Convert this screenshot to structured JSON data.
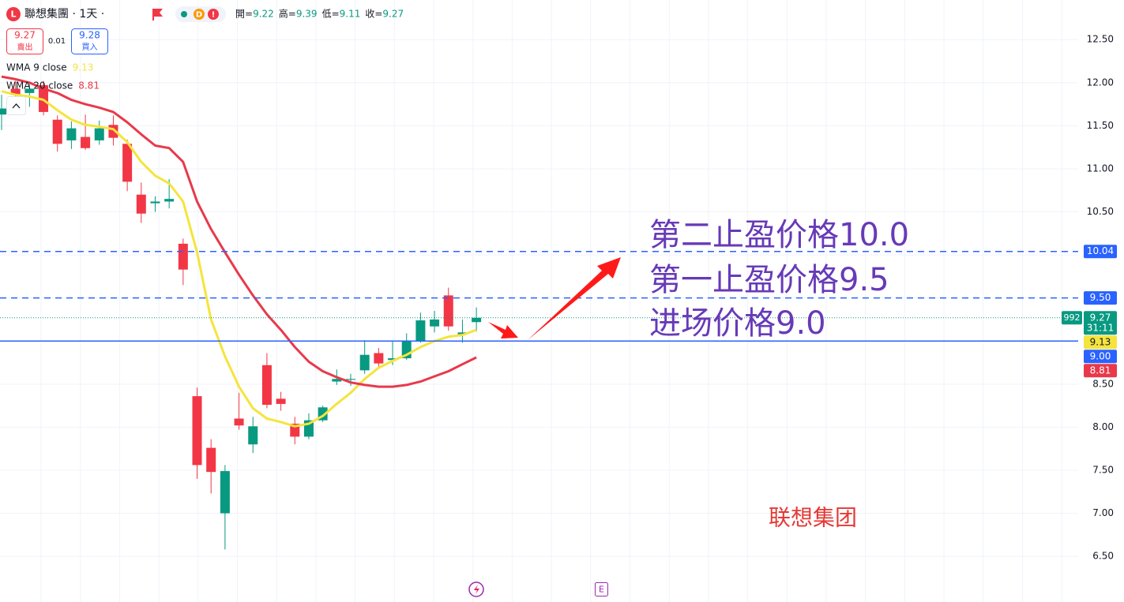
{
  "header": {
    "icon": "L",
    "title": "聯想集團 · 1天 ·",
    "badge": "D",
    "alert": "!",
    "ohlc_labels": [
      "開=",
      "高=",
      "低=",
      "收="
    ]
  },
  "quote": {
    "sell": 9.27,
    "sell_label": "賣出",
    "spread": 0.01,
    "buy": 9.28,
    "buy_label": "買入"
  },
  "chart_data": {
    "type": "candlestick",
    "categories": [
      null,
      null,
      null,
      null,
      null,
      null,
      null,
      null,
      null,
      null,
      null,
      null,
      null,
      null,
      null,
      null,
      null,
      null,
      null,
      null,
      null,
      null,
      null,
      null,
      null,
      null,
      null,
      null,
      null,
      null,
      null,
      null,
      null,
      null,
      null
    ],
    "open": [
      11.63,
      11.93,
      11.88,
      11.97,
      11.57,
      11.33,
      11.37,
      11.33,
      11.51,
      11.29,
      10.7,
      10.6,
      10.62,
      10.13,
      8.36,
      7.76,
      7.0,
      8.1,
      7.8,
      8.72,
      8.33,
      8.04,
      7.89,
      8.08,
      8.53,
      8.55,
      8.66,
      8.86,
      8.78,
      8.8,
      9.0,
      9.17,
      9.53,
      9.08,
      9.22
    ],
    "high": [
      11.86,
      12.02,
      12.0,
      12.02,
      11.62,
      11.55,
      11.63,
      11.56,
      11.62,
      11.34,
      10.84,
      10.68,
      10.88,
      10.19,
      8.46,
      7.86,
      7.56,
      8.4,
      8.12,
      8.86,
      8.41,
      8.12,
      8.16,
      8.25,
      8.67,
      8.62,
      9.01,
      8.92,
      9.0,
      9.09,
      9.33,
      9.35,
      9.62,
      9.25,
      9.39
    ],
    "low": [
      11.45,
      11.76,
      11.72,
      11.62,
      11.2,
      11.23,
      11.22,
      11.28,
      11.27,
      10.74,
      10.37,
      10.5,
      10.54,
      9.65,
      7.4,
      7.23,
      6.58,
      7.97,
      7.7,
      8.22,
      8.19,
      7.8,
      7.86,
      8.06,
      8.49,
      8.48,
      8.62,
      8.68,
      8.72,
      8.78,
      8.98,
      9.1,
      9.12,
      8.98,
      9.11
    ],
    "close": [
      11.7,
      11.86,
      11.93,
      11.66,
      11.29,
      11.47,
      11.24,
      11.47,
      11.36,
      10.85,
      10.48,
      10.62,
      10.65,
      9.83,
      7.56,
      7.48,
      7.49,
      8.02,
      8.01,
      8.26,
      8.27,
      7.89,
      8.08,
      8.23,
      8.56,
      8.56,
      8.84,
      8.74,
      8.8,
      9.0,
      9.24,
      9.25,
      9.17,
      9.1,
      9.27
    ],
    "up_color": "#089981",
    "down_color": "#f23645",
    "indicators": [
      {
        "name": "WMA 9 close",
        "color": "#f5e43d",
        "values": [
          11.9,
          11.86,
          11.84,
          11.8,
          11.68,
          11.57,
          11.51,
          11.49,
          11.46,
          11.31,
          11.08,
          10.92,
          10.83,
          10.62,
          10.03,
          9.25,
          8.82,
          8.47,
          8.22,
          8.1,
          8.06,
          8.01,
          8.04,
          8.13,
          8.27,
          8.4,
          8.56,
          8.69,
          8.77,
          8.84,
          8.93,
          9.0,
          9.05,
          9.07,
          9.13
        ]
      },
      {
        "name": "WMA 20 close",
        "color": "#e8394b",
        "values": [
          12.07,
          12.04,
          12.0,
          11.93,
          11.88,
          11.8,
          11.75,
          11.71,
          11.66,
          11.54,
          11.4,
          11.27,
          11.24,
          11.08,
          10.62,
          10.3,
          10.03,
          9.77,
          9.53,
          9.31,
          9.13,
          8.93,
          8.76,
          8.65,
          8.58,
          8.52,
          8.49,
          8.47,
          8.47,
          8.49,
          8.53,
          8.59,
          8.65,
          8.73,
          8.81
        ]
      }
    ],
    "ylim": [
      5.97,
      12.96
    ],
    "yticks": [
      {
        "value": 6.5,
        "label": "6.50"
      },
      {
        "value": 7,
        "label": "7.00"
      },
      {
        "value": 7.5,
        "label": "7.50"
      },
      {
        "value": 8,
        "label": "8.00"
      },
      {
        "value": 8.5,
        "label": "8.50"
      },
      {
        "value": 9,
        "label": "9.00"
      },
      {
        "value": 9.5,
        "label": "9.50"
      },
      {
        "value": 10,
        "label": "10.00"
      },
      {
        "value": 10.5,
        "label": "10.50"
      },
      {
        "value": 11,
        "label": "11.00"
      },
      {
        "value": 11.5,
        "label": "11.50"
      },
      {
        "value": 12,
        "label": "12.00"
      },
      {
        "value": 12.5,
        "label": "12.50"
      }
    ],
    "grid": true,
    "levels": [
      {
        "price": 10.04,
        "style": "dashed",
        "color": "#2962ff"
      },
      {
        "price": {
          "value": 9.5,
          "label": "9.50"
        },
        "style": "dashed",
        "color": "#2962ff"
      },
      {
        "price": {
          "value": 9,
          "label": "9.00"
        },
        "style": "solid",
        "color": "#2962ff"
      }
    ],
    "volume_tag": 992,
    "countdown": "31:11",
    "annotations": [
      {
        "text": "第二止盈价格10.0",
        "color": "#673ab7"
      },
      {
        "text": "第一止盈价格9.5",
        "color": "#673ab7"
      },
      {
        "text": "进场价格9.0",
        "color": "#673ab7"
      },
      {
        "text": "联想集团",
        "color": "#e53935"
      }
    ]
  },
  "footer": {
    "earnings_icon": "E"
  }
}
